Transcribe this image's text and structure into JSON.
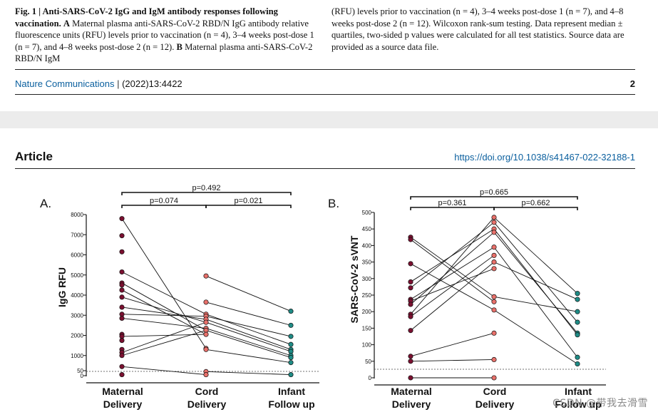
{
  "caption": {
    "left": {
      "fig_label": "Fig. 1 | Anti-SARS-CoV-2 IgG and IgM antibody responses following vaccination.",
      "a_label": "A",
      "a_text": "Maternal plasma anti-SARS-CoV-2 RBD/N IgG antibody relative fluorescence units (RFU) levels prior to vaccination (n = 4), 3–4 weeks post-dose 1 (n = 7), and 4–8 weeks post-dose 2 (n = 12).",
      "b_label": "B",
      "b_text": "Maternal plasma anti-SARS-CoV-2 RBD/N IgM"
    },
    "right": "(RFU) levels prior to vaccination (n = 4), 3–4 weeks post-dose 1 (n = 7), and 4–8 weeks post-dose 2 (n = 12). Wilcoxon rank-sum testing. Data represent median ± quartiles, two-sided p values were calculated for all test statistics. Source data are provided as a source data file."
  },
  "footer": {
    "journal": "Nature Communications",
    "separator": "|",
    "citation": "(2022)13:4422",
    "page_number": "2"
  },
  "article": {
    "label": "Article",
    "doi": "https://doi.org/10.1038/s41467-022-32188-1"
  },
  "watermark": "CSDN @带我去滑雪",
  "colors": {
    "maternal": "#7a1030",
    "cord": "#e8706a",
    "infant": "#1f8c86",
    "link": "#0a5f9e"
  },
  "chart_data": [
    {
      "type": "scatter",
      "panel_label": "A.",
      "ylabel": "IgG RFU",
      "categories": [
        "Maternal\nDelivery",
        "Cord\nDelivery",
        "Infant\nFollow up"
      ],
      "category_lines": [
        [
          "Maternal",
          "Delivery"
        ],
        [
          "Cord",
          "Delivery"
        ],
        [
          "Infant",
          "Follow up"
        ]
      ],
      "yticks": [
        8000,
        7000,
        6000,
        5000,
        4000,
        3000,
        2000,
        1000
      ],
      "low_ticks": [
        "50",
        "0"
      ],
      "threshold": 50,
      "ylim": [
        0,
        8000
      ],
      "maternal": [
        7800,
        6950,
        6150,
        5150,
        4600,
        4500,
        4250,
        3900,
        3400,
        3050,
        2850,
        2050,
        1950,
        1750,
        1300,
        1150,
        1000,
        450,
        50
      ],
      "cord": [
        4950,
        3650,
        3050,
        2950,
        2800,
        2650,
        2350,
        2250,
        2050,
        1350,
        1300,
        200,
        50
      ],
      "infant": [
        3200,
        2500,
        1950,
        1550,
        1300,
        1200,
        1000,
        900,
        650,
        50
      ],
      "pairs_mc": [
        [
          7800,
          1350
        ],
        [
          5150,
          3050
        ],
        [
          4600,
          2250
        ],
        [
          4250,
          2050
        ],
        [
          3900,
          2650
        ],
        [
          3400,
          2800
        ],
        [
          3050,
          2950
        ],
        [
          2850,
          2350
        ],
        [
          1950,
          2050
        ],
        [
          1150,
          2650
        ],
        [
          1000,
          2250
        ],
        [
          450,
          50
        ]
      ],
      "pairs_ci": [
        [
          4950,
          3200
        ],
        [
          3650,
          2500
        ],
        [
          3050,
          1550
        ],
        [
          2950,
          1950
        ],
        [
          2800,
          1300
        ],
        [
          2650,
          1200
        ],
        [
          2350,
          1000
        ],
        [
          2250,
          900
        ],
        [
          1300,
          650
        ],
        [
          200,
          50
        ]
      ],
      "comparisons": [
        {
          "label": "p=0.492",
          "from": 0,
          "to": 2,
          "level": 0
        },
        {
          "label": "p=0.074",
          "from": 0,
          "to": 1,
          "level": 1
        },
        {
          "label": "p=0.021",
          "from": 1,
          "to": 2,
          "level": 1
        }
      ]
    },
    {
      "type": "scatter",
      "panel_label": "B.",
      "ylabel": "SARS-CoV-2 sVNT",
      "categories": [
        "Maternal\nDelivery",
        "Cord\nDelivery",
        "Infant\nFollow up"
      ],
      "category_lines": [
        [
          "Maternal",
          "Delivery"
        ],
        [
          "Cord",
          "Delivery"
        ],
        [
          "Infant",
          "Follow up"
        ]
      ],
      "yticks": [
        500,
        450,
        400,
        350,
        300,
        250,
        200,
        150,
        100,
        50,
        0
      ],
      "threshold": 25,
      "ylim": [
        0,
        500
      ],
      "maternal": [
        425,
        418,
        345,
        290,
        272,
        237,
        232,
        222,
        192,
        185,
        143,
        65,
        50,
        0
      ],
      "cord": [
        485,
        470,
        450,
        440,
        395,
        370,
        350,
        330,
        245,
        230,
        205,
        135,
        55,
        0
      ],
      "infant": [
        255,
        237,
        200,
        168,
        135,
        130,
        62,
        42
      ],
      "pairs_mc": [
        [
          425,
          245
        ],
        [
          418,
          230
        ],
        [
          345,
          205
        ],
        [
          290,
          450
        ],
        [
          272,
          470
        ],
        [
          237,
          395
        ],
        [
          232,
          330
        ],
        [
          222,
          440
        ],
        [
          192,
          485
        ],
        [
          185,
          370
        ],
        [
          143,
          350
        ],
        [
          65,
          135
        ],
        [
          50,
          55
        ],
        [
          0,
          0
        ]
      ],
      "pairs_ci": [
        [
          485,
          255
        ],
        [
          470,
          168
        ],
        [
          450,
          130
        ],
        [
          440,
          135
        ],
        [
          395,
          62
        ],
        [
          350,
          237
        ],
        [
          245,
          200
        ],
        [
          205,
          42
        ]
      ],
      "comparisons": [
        {
          "label": "p=0.665",
          "from": 0,
          "to": 2,
          "level": 0
        },
        {
          "label": "p=0.361",
          "from": 0,
          "to": 1,
          "level": 1
        },
        {
          "label": "p=0.662",
          "from": 1,
          "to": 2,
          "level": 1
        }
      ]
    }
  ]
}
